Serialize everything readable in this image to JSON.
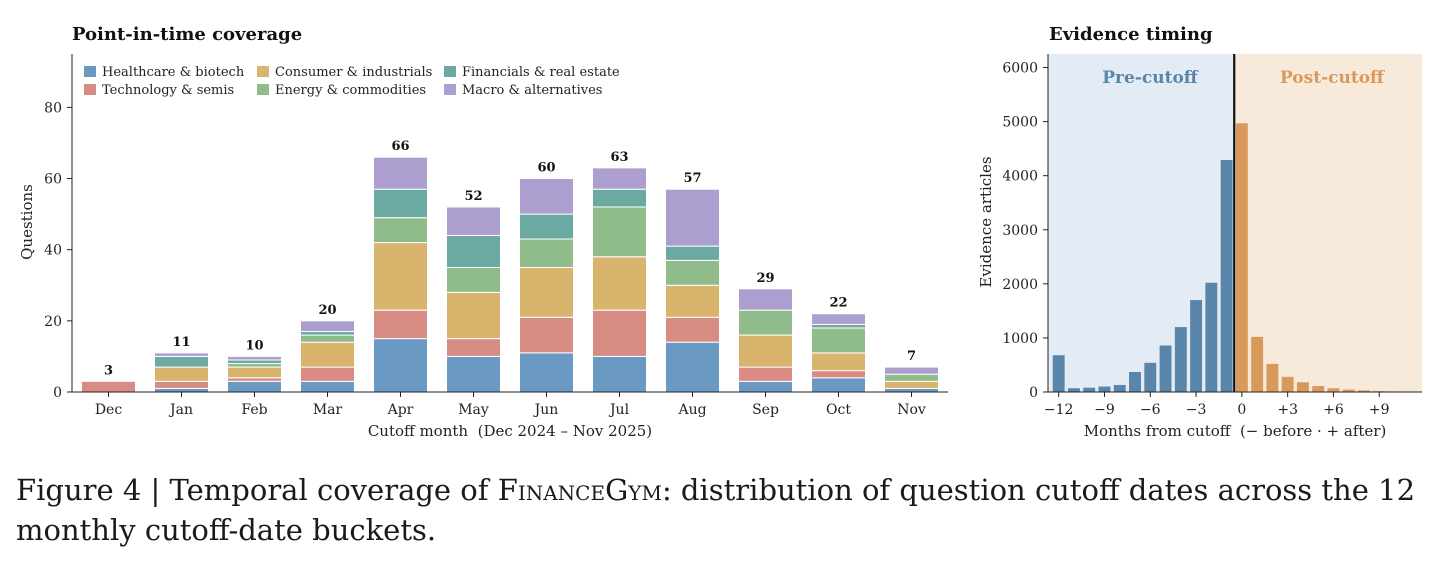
{
  "chart_data": [
    {
      "type": "bar",
      "stacked": true,
      "title": "Point-in-time coverage",
      "xlabel": "Cutoff month  (Dec 2024 – Nov 2025)",
      "ylabel": "Questions",
      "ylim": [
        0,
        95
      ],
      "yticks": [
        0,
        20,
        40,
        60,
        80
      ],
      "categories": [
        "Dec",
        "Jan",
        "Feb",
        "Mar",
        "Apr",
        "May",
        "Jun",
        "Jul",
        "Aug",
        "Sep",
        "Oct",
        "Nov"
      ],
      "totals": [
        3,
        11,
        10,
        20,
        66,
        52,
        60,
        63,
        57,
        29,
        22,
        7
      ],
      "legend_position": "top-left",
      "grid": false,
      "series": [
        {
          "name": "Healthcare & biotech",
          "color": "#6a9ac4",
          "values": [
            0,
            1,
            3,
            3,
            15,
            10,
            11,
            10,
            14,
            3,
            4,
            1
          ]
        },
        {
          "name": "Technology & semis",
          "color": "#d88c83",
          "values": [
            3,
            2,
            1,
            4,
            8,
            5,
            10,
            13,
            7,
            4,
            2,
            0
          ]
        },
        {
          "name": "Consumer & industrials",
          "color": "#d9b46c",
          "values": [
            0,
            4,
            3,
            7,
            19,
            13,
            14,
            15,
            9,
            9,
            5,
            2
          ]
        },
        {
          "name": "Energy & commodities",
          "color": "#8fbc8a",
          "values": [
            0,
            0,
            1,
            2,
            7,
            7,
            8,
            14,
            7,
            7,
            7,
            2
          ]
        },
        {
          "name": "Financials & real estate",
          "color": "#6aaaa2",
          "values": [
            0,
            3,
            1,
            1,
            8,
            9,
            7,
            5,
            4,
            0,
            1,
            0
          ]
        },
        {
          "name": "Macro & alternatives",
          "color": "#ac9fcf",
          "values": [
            0,
            1,
            1,
            3,
            9,
            8,
            10,
            6,
            16,
            6,
            3,
            2
          ]
        }
      ]
    },
    {
      "type": "bar",
      "title": "Evidence timing",
      "xlabel": "Months from cutoff  (− before · + after)",
      "ylabel": "Evidence articles",
      "xlim": [
        -12.7,
        11.8
      ],
      "ylim": [
        0,
        6250
      ],
      "yticks": [
        0,
        1000,
        2000,
        3000,
        4000,
        5000,
        6000
      ],
      "xticks": [
        -12,
        -9,
        -6,
        -3,
        0,
        3,
        6,
        9
      ],
      "xtick_labels": [
        "−12",
        "−9",
        "−6",
        "−3",
        "0",
        "+3",
        "+6",
        "+9"
      ],
      "region_labels": {
        "before": "Pre-cutoff",
        "after": "Post-cutoff"
      },
      "colors": {
        "before": "#5a85ab",
        "after": "#d9995a",
        "before_bg": "#e3ecf4",
        "after_bg": "#f7eadb",
        "cutoff_line": "#111111"
      },
      "grid": false,
      "x": [
        -12,
        -11,
        -10,
        -9,
        -8,
        -7,
        -6,
        -5,
        -4,
        -3,
        -2,
        -1,
        0,
        1,
        2,
        3,
        4,
        5,
        6,
        7,
        8,
        9,
        10,
        11
      ],
      "values": [
        680,
        70,
        80,
        100,
        130,
        370,
        540,
        860,
        1200,
        1700,
        2020,
        4290,
        4970,
        1020,
        520,
        280,
        180,
        110,
        70,
        45,
        30,
        15,
        10,
        5
      ]
    }
  ],
  "caption": {
    "prefix": "Figure 4 | Temporal coverage of ",
    "name": "FinanceGym",
    "suffix": ": distribution of question cutoff dates across the 12 monthly cutoff-date buckets."
  }
}
